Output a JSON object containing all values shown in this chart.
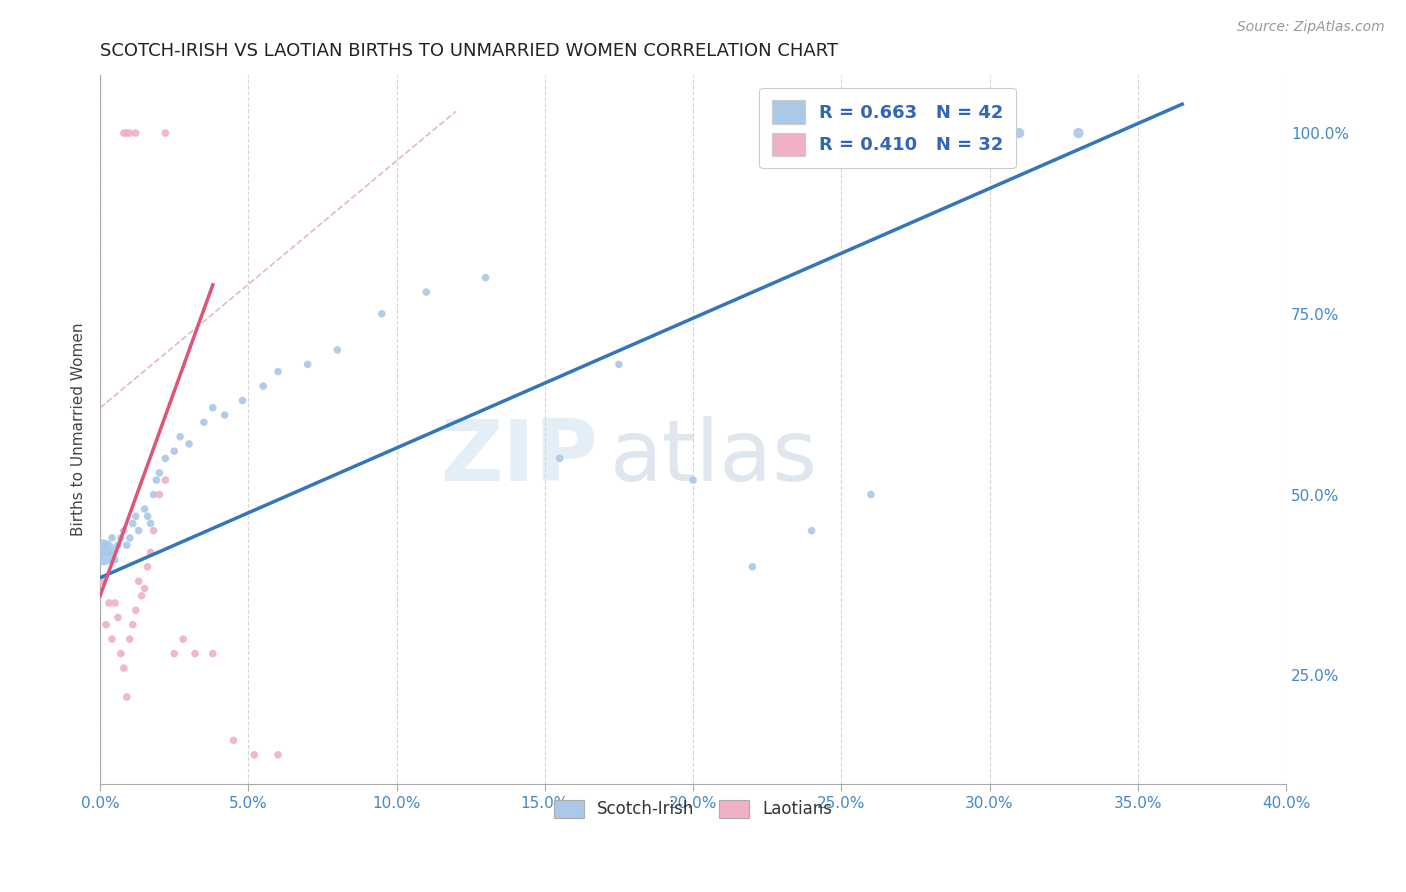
{
  "title": "SCOTCH-IRISH VS LAOTIAN BIRTHS TO UNMARRIED WOMEN CORRELATION CHART",
  "source": "Source: ZipAtlas.com",
  "ylabel": "Births to Unmarried Women",
  "watermark_part1": "ZIP",
  "watermark_part2": "atlas",
  "legend_blue_label": "Scotch-Irish",
  "legend_pink_label": "Laotians",
  "legend_blue_R": "R = 0.663",
  "legend_blue_N": "N = 42",
  "legend_pink_R": "R = 0.410",
  "legend_pink_N": "N = 32",
  "blue_color": "#aac8e8",
  "pink_color": "#f0b0c8",
  "blue_line_color": "#3377bb",
  "pink_line_color": "#dd5577",
  "pink_dash_color": "#dd99aa",
  "grid_color": "#cccccc",
  "background_color": "#ffffff",
  "xlim": [
    0.0,
    0.4
  ],
  "ylim": [
    0.1,
    1.08
  ],
  "x_ticks": [
    0.0,
    0.05,
    0.1,
    0.15,
    0.2,
    0.25,
    0.3,
    0.35,
    0.4
  ],
  "y_ticks_right": [
    0.25,
    0.5,
    0.75,
    1.0
  ],
  "scatter_blue": {
    "x": [
      0.001,
      0.002,
      0.003,
      0.004,
      0.005,
      0.006,
      0.007,
      0.008,
      0.009,
      0.01,
      0.011,
      0.012,
      0.013,
      0.015,
      0.016,
      0.017,
      0.018,
      0.019,
      0.02,
      0.022,
      0.025,
      0.027,
      0.03,
      0.035,
      0.038,
      0.042,
      0.048,
      0.055,
      0.06,
      0.07,
      0.08,
      0.095,
      0.11,
      0.13,
      0.155,
      0.175,
      0.2,
      0.22,
      0.24,
      0.26,
      0.31,
      0.33
    ],
    "y": [
      0.42,
      0.43,
      0.42,
      0.44,
      0.41,
      0.43,
      0.44,
      0.45,
      0.43,
      0.44,
      0.46,
      0.47,
      0.45,
      0.48,
      0.47,
      0.46,
      0.5,
      0.52,
      0.53,
      0.55,
      0.56,
      0.58,
      0.57,
      0.6,
      0.62,
      0.61,
      0.63,
      0.65,
      0.67,
      0.68,
      0.7,
      0.75,
      0.78,
      0.8,
      0.55,
      0.68,
      0.52,
      0.4,
      0.45,
      0.5,
      1.0,
      1.0
    ],
    "size": [
      30,
      30,
      30,
      30,
      30,
      30,
      30,
      30,
      30,
      30,
      30,
      30,
      30,
      30,
      30,
      30,
      30,
      30,
      30,
      30,
      30,
      30,
      30,
      30,
      30,
      30,
      30,
      30,
      30,
      30,
      30,
      30,
      30,
      30,
      30,
      30,
      30,
      30,
      30,
      30,
      55,
      55
    ]
  },
  "scatter_blue_large": {
    "x": [
      0.001
    ],
    "y": [
      0.42
    ],
    "size": [
      350
    ]
  },
  "scatter_pink": {
    "x": [
      0.001,
      0.002,
      0.003,
      0.004,
      0.005,
      0.006,
      0.007,
      0.008,
      0.009,
      0.01,
      0.011,
      0.012,
      0.013,
      0.014,
      0.015,
      0.016,
      0.017,
      0.018,
      0.02,
      0.022,
      0.025,
      0.028,
      0.032,
      0.038,
      0.045,
      0.052,
      0.06,
      0.008,
      0.009,
      0.01,
      0.012,
      0.022
    ],
    "y": [
      0.38,
      0.32,
      0.35,
      0.3,
      0.35,
      0.33,
      0.28,
      0.26,
      0.22,
      0.3,
      0.32,
      0.34,
      0.38,
      0.36,
      0.37,
      0.4,
      0.42,
      0.45,
      0.5,
      0.52,
      0.28,
      0.3,
      0.28,
      0.28,
      0.16,
      0.14,
      0.14,
      1.0,
      1.0,
      1.0,
      1.0,
      1.0
    ],
    "size": [
      30,
      30,
      30,
      30,
      30,
      30,
      30,
      30,
      30,
      30,
      30,
      30,
      30,
      30,
      30,
      30,
      30,
      30,
      30,
      30,
      30,
      30,
      30,
      30,
      30,
      30,
      30,
      30,
      30,
      30,
      30,
      30
    ]
  },
  "blue_line": {
    "x0": 0.0,
    "y0": 0.385,
    "x1": 0.365,
    "y1": 1.04
  },
  "pink_line": {
    "x0": 0.0,
    "y0": 0.36,
    "x1": 0.038,
    "y1": 0.79
  },
  "pink_dash_line": {
    "x0": 0.0,
    "y0": 0.62,
    "x1": 0.12,
    "y1": 1.03
  }
}
